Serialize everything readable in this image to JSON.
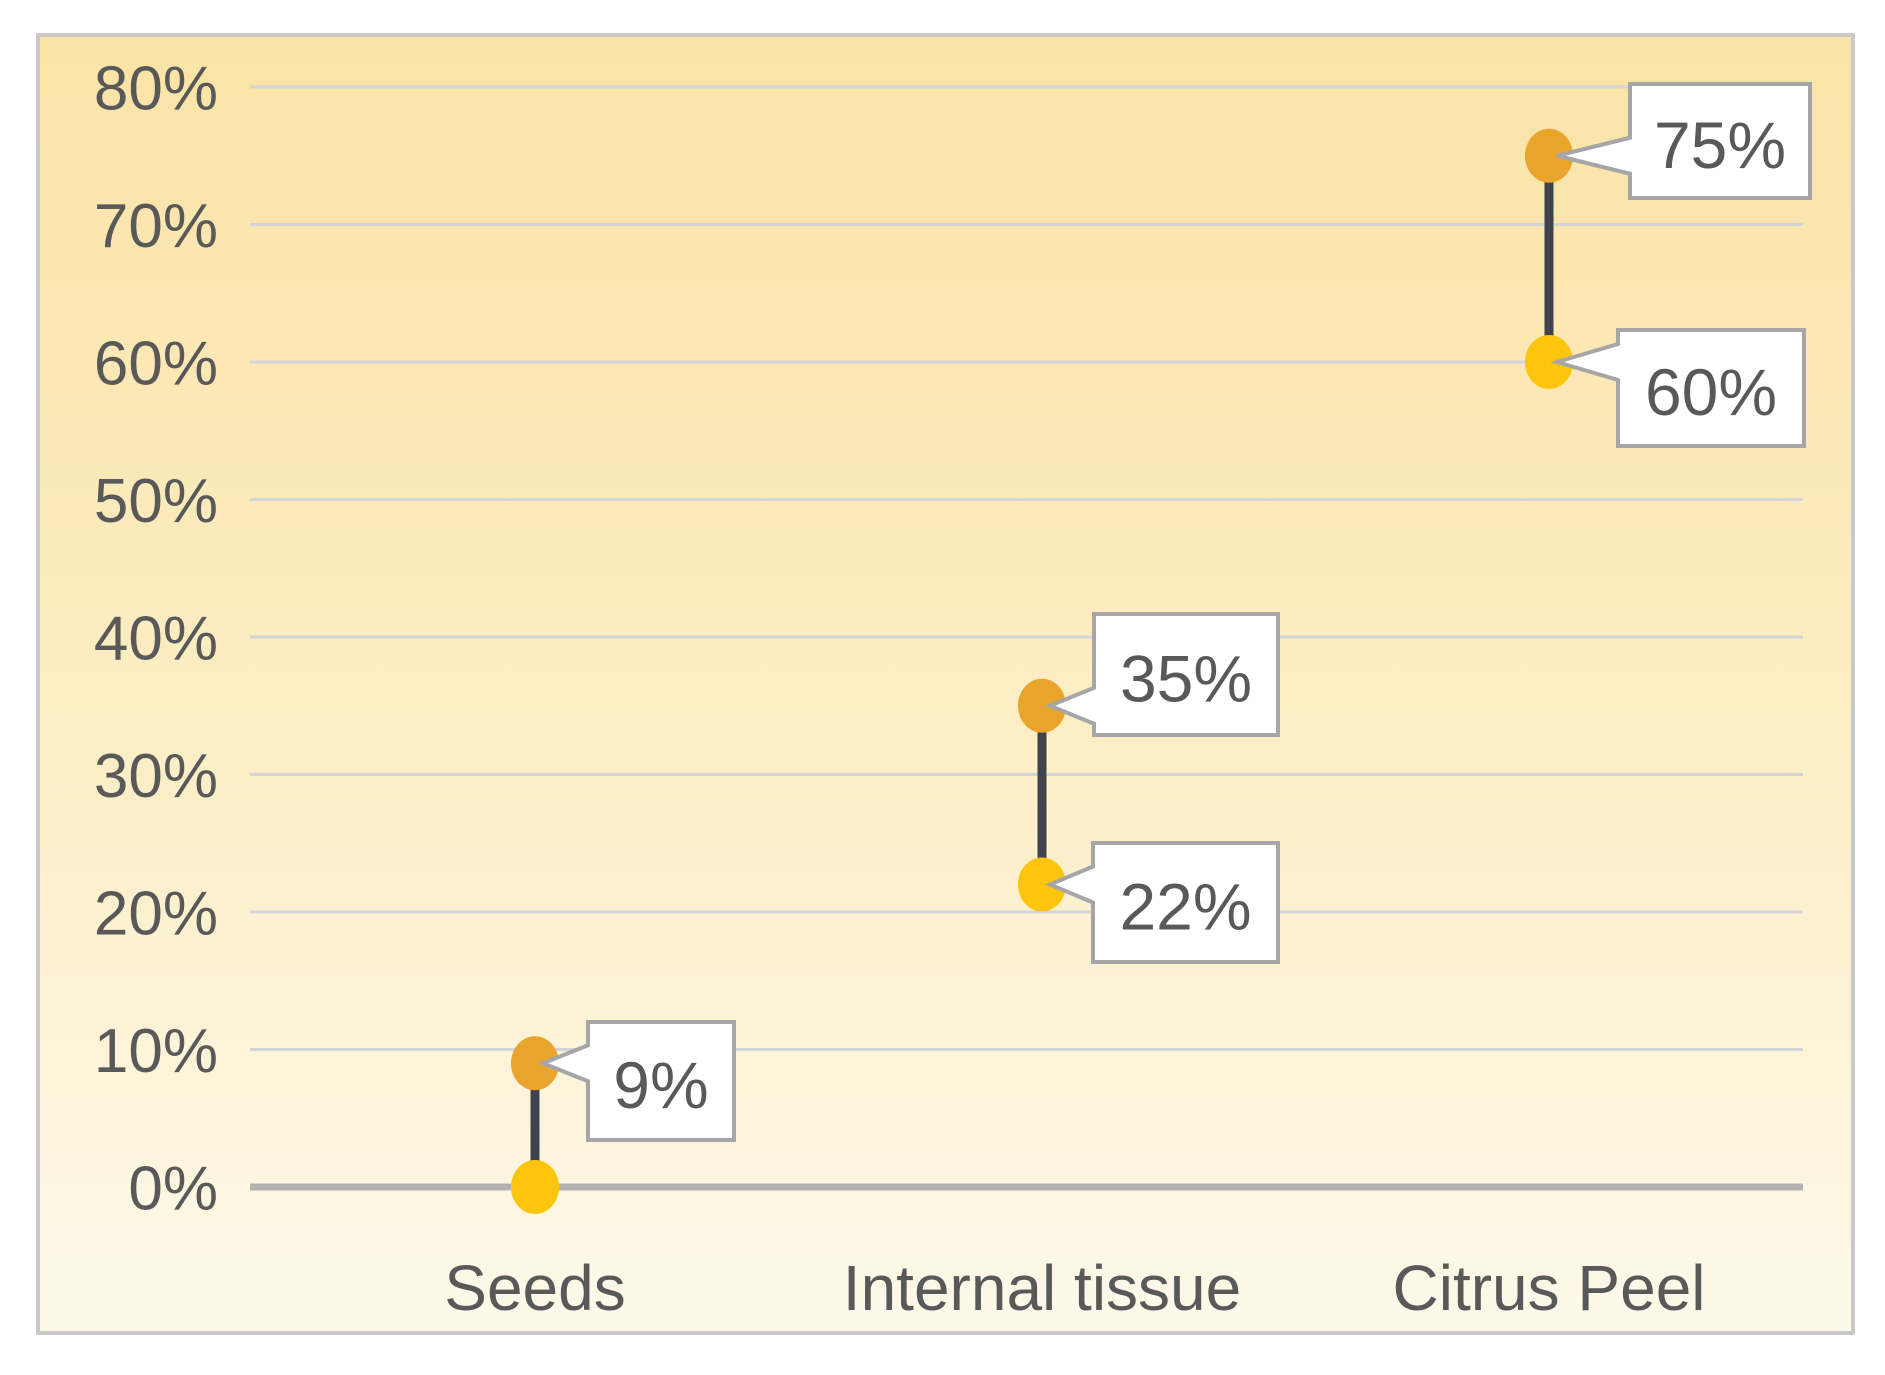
{
  "chart_data": {
    "type": "scatter",
    "variant": "dumbbell-range",
    "title": "",
    "xlabel": "",
    "ylabel": "",
    "categories": [
      "Seeds",
      "Internal tissue",
      "Citrus Peel"
    ],
    "series": [
      {
        "name": "low",
        "values": [
          0,
          22,
          60
        ]
      },
      {
        "name": "high",
        "values": [
          9,
          35,
          75
        ]
      }
    ],
    "data_labels": [
      {
        "category": "Seeds",
        "point": "high",
        "label": "9%"
      },
      {
        "category": "Internal tissue",
        "point": "high",
        "label": "35%"
      },
      {
        "category": "Internal tissue",
        "point": "low",
        "label": "22%"
      },
      {
        "category": "Citrus Peel",
        "point": "high",
        "label": "75%"
      },
      {
        "category": "Citrus Peel",
        "point": "low",
        "label": "60%"
      }
    ],
    "y_ticks": [
      {
        "value": 0,
        "label": "0%"
      },
      {
        "value": 10,
        "label": "10%"
      },
      {
        "value": 20,
        "label": "20%"
      },
      {
        "value": 30,
        "label": "30%"
      },
      {
        "value": 40,
        "label": "40%"
      },
      {
        "value": 50,
        "label": "50%"
      },
      {
        "value": 60,
        "label": "60%"
      },
      {
        "value": 70,
        "label": "70%"
      },
      {
        "value": 80,
        "label": "80%"
      }
    ],
    "ylim": [
      0,
      80
    ],
    "grid": true,
    "legend": "none",
    "colors": {
      "high_dot": "#E9A42C",
      "low_dot": "#FFC40C",
      "connector": "#3F434B",
      "gridline": "#D2D4DA",
      "zero_axis": "#B1B1B1",
      "text": "#595959",
      "callout_fill": "#FFFFFF",
      "callout_border": "#A6A6A6",
      "panel_border": "#C9C9C9",
      "bg_top": "#FAE3A6",
      "bg_mid": "#FCEEC5",
      "bg_bottom": "#FDF8EA"
    }
  }
}
